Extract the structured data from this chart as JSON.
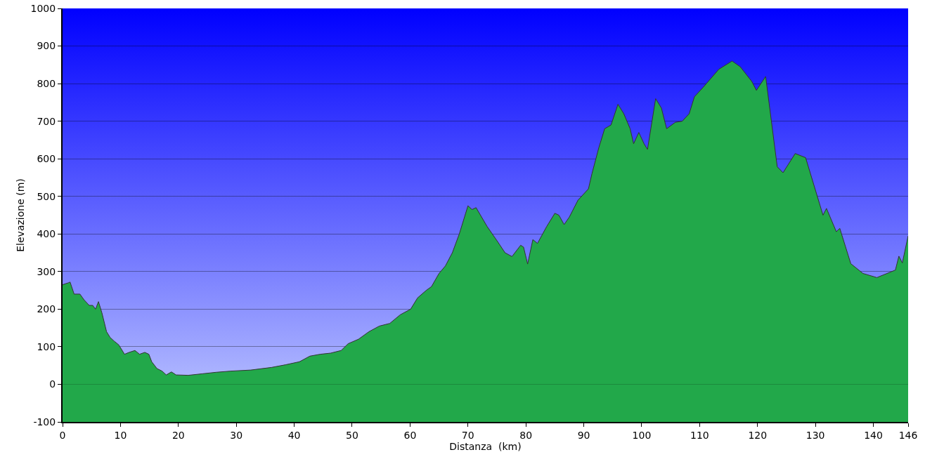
{
  "chart_data": {
    "type": "area",
    "xlabel": "Distanza  (km)",
    "ylabel": "Elevazione (m)",
    "x": [
      0,
      1,
      1.3,
      2,
      3,
      3.7,
      4.6,
      5.2,
      5.7,
      6.2,
      6.8,
      7.6,
      8.2,
      8.9,
      9.7,
      10.7,
      11.5,
      12.5,
      13.3,
      14.2,
      14.9,
      15.4,
      16.3,
      17.2,
      17.9,
      18.8,
      19.6,
      21.7,
      24.1,
      26.5,
      28.9,
      32.5,
      36.1,
      38.5,
      40.9,
      42.7,
      44.5,
      46.3,
      48.1,
      49.3,
      51.1,
      52.9,
      54.7,
      56.5,
      58.3,
      60.1,
      61.3,
      62.8,
      63.7,
      65,
      66.1,
      67.3,
      68.5,
      70,
      70.7,
      71.4,
      73.3,
      75.1,
      76.4,
      77.6,
      79.1,
      79.6,
      80.3,
      81.2,
      82,
      83.6,
      85,
      85.7,
      86.6,
      87.5,
      89,
      90.8,
      91.4,
      92.6,
      93.6,
      94.7,
      95.9,
      96.9,
      98,
      98.6,
      99.5,
      100.4,
      101,
      102.4,
      103.4,
      104.3,
      105.8,
      107,
      108.2,
      109.1,
      110.6,
      113.3,
      115.6,
      117,
      119,
      119.8,
      121.4,
      123.4,
      124.4,
      126.5,
      128.3,
      131.3,
      131.9,
      133.6,
      134.2,
      136.1,
      138.2,
      140.6,
      143.8,
      144.4,
      145,
      146
    ],
    "series": [
      {
        "color": "#22a84a",
        "values": [
          265,
          270,
          272,
          240,
          240,
          225,
          210,
          210,
          200,
          220,
          190,
          140,
          125,
          115,
          105,
          80,
          85,
          90,
          80,
          85,
          80,
          60,
          42,
          35,
          25,
          33,
          25,
          24,
          28,
          32,
          35,
          38,
          45,
          52,
          60,
          75,
          80,
          83,
          90,
          108,
          120,
          140,
          155,
          162,
          185,
          200,
          230,
          250,
          260,
          295,
          315,
          350,
          400,
          475,
          465,
          470,
          420,
          380,
          350,
          340,
          370,
          365,
          320,
          385,
          375,
          420,
          455,
          450,
          425,
          445,
          490,
          520,
          560,
          630,
          680,
          690,
          745,
          720,
          680,
          640,
          670,
          640,
          625,
          760,
          735,
          680,
          697,
          700,
          720,
          765,
          790,
          838,
          860,
          845,
          806,
          782,
          819,
          579,
          563,
          614,
          603,
          450,
          468,
          406,
          415,
          321,
          295,
          284,
          304,
          341,
          323,
          395
        ]
      }
    ],
    "xlim": [
      0,
      146
    ],
    "xticks": [
      0,
      10,
      20,
      30,
      40,
      50,
      60,
      70,
      80,
      90,
      100,
      110,
      120,
      130,
      140,
      146
    ],
    "ylim": [
      -100,
      1000
    ],
    "yticks": [
      -100,
      0,
      100,
      200,
      300,
      400,
      500,
      600,
      700,
      800,
      900,
      1000
    ],
    "grid": "y"
  }
}
